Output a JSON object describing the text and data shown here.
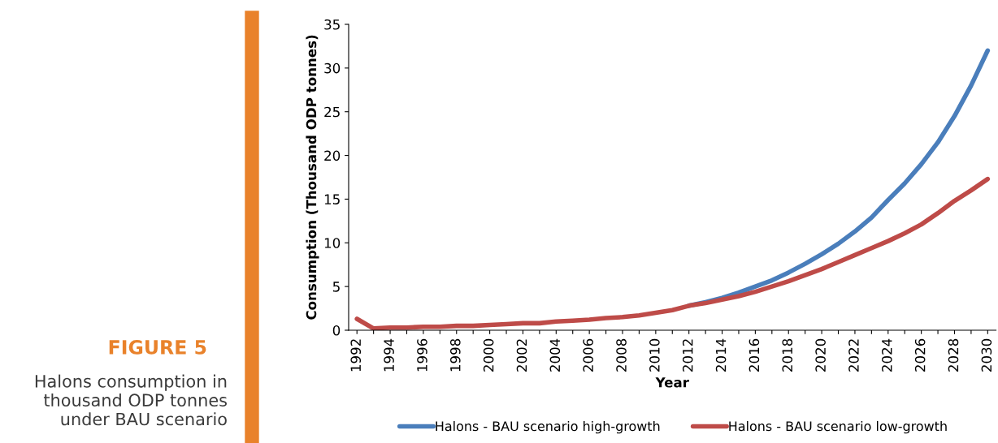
{
  "chart_data": {
    "type": "line",
    "annotations": [
      "FIGURE 5",
      "Halons consumption in\nthousand ODP tonnes\nunder BAU scenario"
    ],
    "xlabel": "Year",
    "ylabel": "Consumption (Thousand ODP tonnes)",
    "categories": [
      "1992",
      null,
      "1994",
      null,
      "1996",
      null,
      "1998",
      null,
      "2000",
      null,
      "2002",
      null,
      "2004",
      null,
      "2006",
      null,
      "2008",
      null,
      "2010",
      null,
      "2012",
      null,
      "2014",
      null,
      "2016",
      null,
      "2018",
      null,
      "2020",
      null,
      "2022",
      null,
      "2024",
      null,
      "2026",
      null,
      "2028",
      null,
      "2030"
    ],
    "series": [
      {
        "name": "Halons - BAU scenario high-growth",
        "color": "#4a7ebb",
        "values": [
          null,
          null,
          null,
          null,
          null,
          null,
          null,
          null,
          null,
          null,
          null,
          null,
          null,
          null,
          null,
          null,
          null,
          null,
          null,
          null,
          2.8,
          3.2,
          3.7,
          4.3,
          5.0,
          5.7,
          6.6,
          7.6,
          8.7,
          9.9,
          11.3,
          12.9,
          14.9,
          16.8,
          19.0,
          21.5,
          24.5,
          28.0,
          32.0
        ]
      },
      {
        "name": "Halons - BAU scenario low-growth",
        "color": "#be4b48",
        "values": [
          1.3,
          0.2,
          0.3,
          0.3,
          0.4,
          0.4,
          0.5,
          0.5,
          0.6,
          0.7,
          0.8,
          0.8,
          1.0,
          1.1,
          1.2,
          1.4,
          1.5,
          1.7,
          2.0,
          2.3,
          2.8,
          3.1,
          3.5,
          3.9,
          4.4,
          5.0,
          5.6,
          6.3,
          7.0,
          7.8,
          8.6,
          9.4,
          10.2,
          11.1,
          12.1,
          13.4,
          14.8,
          16.0,
          17.3
        ]
      }
    ],
    "ylim": [
      0,
      35
    ],
    "yticks": [
      0,
      5,
      10,
      15,
      20,
      25,
      30,
      35
    ],
    "grid": false,
    "legend": "bottom",
    "marker": "none",
    "line_style": "solid"
  }
}
